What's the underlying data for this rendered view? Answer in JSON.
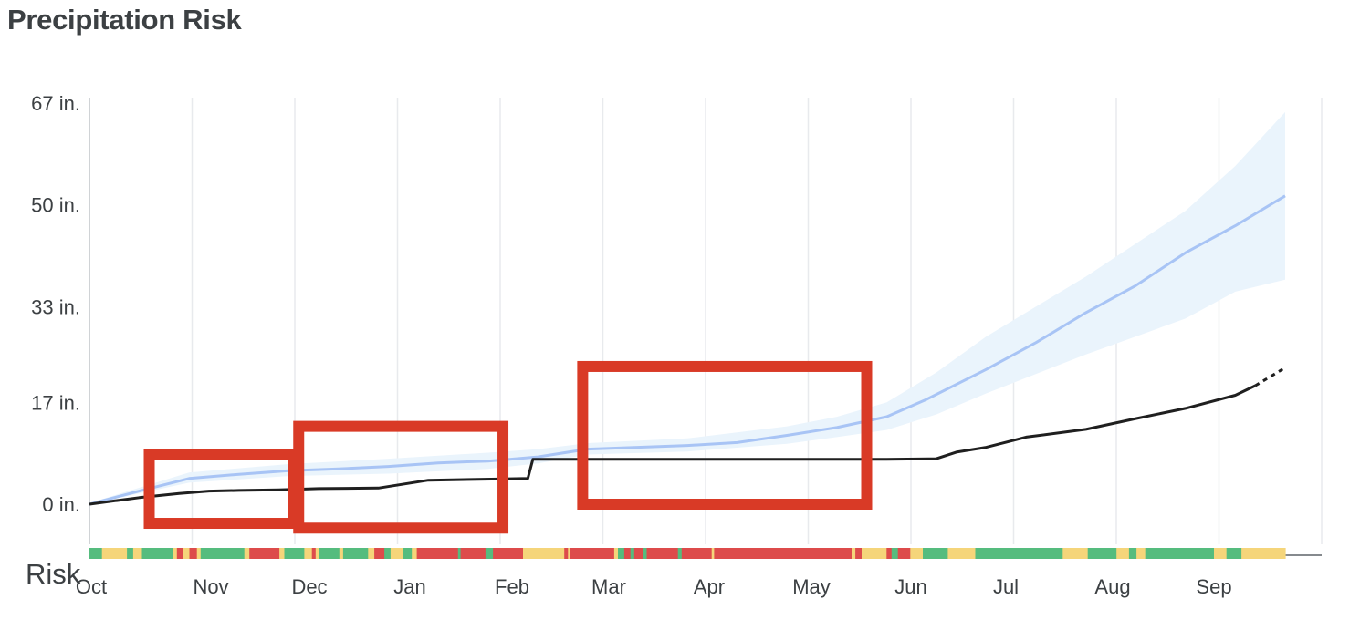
{
  "title": "Precipitation Risk",
  "risk_label": "Risk",
  "colors": {
    "actual_line": "#1f1f1f",
    "forecast_line": "#a8c4f5",
    "forecast_band": "#eaf4fc",
    "highlight_box": "#d93a26",
    "risk_green": "#55bc7e",
    "risk_yellow": "#f5d57a",
    "risk_red": "#dd4b4b",
    "grid": "#e8eaed"
  },
  "chart_data": {
    "type": "line",
    "title": "Precipitation Risk",
    "xlabel": "",
    "ylabel": "",
    "x_unit": "months from Oct 1",
    "xlim": [
      0,
      12
    ],
    "ylim": [
      0,
      67
    ],
    "grid": true,
    "categories": [
      "Oct",
      "Nov",
      "Dec",
      "Jan",
      "Feb",
      "Mar",
      "Apr",
      "May",
      "Jun",
      "Jul",
      "Aug",
      "Sep"
    ],
    "y_ticks": [
      {
        "value": 0,
        "label": "0 in."
      },
      {
        "value": 17,
        "label": "17 in."
      },
      {
        "value": 33,
        "label": "33 in."
      },
      {
        "value": 50,
        "label": "50 in."
      },
      {
        "value": 67,
        "label": "67 in."
      }
    ],
    "series": [
      {
        "role": "actual",
        "style": "solid",
        "points": [
          [
            0,
            0
          ],
          [
            0.5,
            1.1
          ],
          [
            0.9,
            1.8
          ],
          [
            1.2,
            2.2
          ],
          [
            1.5,
            2.3
          ],
          [
            1.9,
            2.4
          ],
          [
            2.3,
            2.6
          ],
          [
            2.9,
            2.7
          ],
          [
            3.4,
            4.0
          ],
          [
            4.1,
            4.2
          ],
          [
            4.4,
            4.3
          ],
          [
            4.45,
            7.5
          ],
          [
            5.0,
            7.5
          ],
          [
            6.0,
            7.5
          ],
          [
            7.0,
            7.5
          ],
          [
            8.0,
            7.5
          ],
          [
            8.5,
            7.6
          ],
          [
            8.7,
            8.7
          ],
          [
            9.0,
            9.5
          ],
          [
            9.4,
            11.2
          ],
          [
            10.0,
            12.5
          ],
          [
            10.5,
            14.3
          ],
          [
            11.0,
            16.0
          ],
          [
            11.5,
            18.2
          ],
          [
            11.7,
            19.8
          ]
        ]
      },
      {
        "role": "actual-projection",
        "style": "dotted",
        "points": [
          [
            11.7,
            19.8
          ],
          [
            12.0,
            22.8
          ]
        ]
      },
      {
        "role": "forecast-median",
        "points": [
          [
            0,
            0
          ],
          [
            0.5,
            2.2
          ],
          [
            1.0,
            4.3
          ],
          [
            1.5,
            5.0
          ],
          [
            2.0,
            5.6
          ],
          [
            2.5,
            5.9
          ],
          [
            3.0,
            6.3
          ],
          [
            3.5,
            6.9
          ],
          [
            4.0,
            7.2
          ],
          [
            4.5,
            7.9
          ],
          [
            5.0,
            9.2
          ],
          [
            5.5,
            9.5
          ],
          [
            6.0,
            9.8
          ],
          [
            6.5,
            10.3
          ],
          [
            7.0,
            11.5
          ],
          [
            7.5,
            12.8
          ],
          [
            8.0,
            14.6
          ],
          [
            8.4,
            17.5
          ],
          [
            9.0,
            22.5
          ],
          [
            9.5,
            27.0
          ],
          [
            10.0,
            32.0
          ],
          [
            10.5,
            36.5
          ],
          [
            11.0,
            42.0
          ],
          [
            11.5,
            46.5
          ],
          [
            12.0,
            51.5
          ]
        ]
      },
      {
        "role": "forecast-range",
        "upper": [
          [
            0,
            0.2
          ],
          [
            1.0,
            5.3
          ],
          [
            2.0,
            6.7
          ],
          [
            3.0,
            7.6
          ],
          [
            4.0,
            8.6
          ],
          [
            4.5,
            9.2
          ],
          [
            5.0,
            10.2
          ],
          [
            6.0,
            11.0
          ],
          [
            7.0,
            13.0
          ],
          [
            7.5,
            14.6
          ],
          [
            8.0,
            17.0
          ],
          [
            8.5,
            22.0
          ],
          [
            9.0,
            28.0
          ],
          [
            10.0,
            38.0
          ],
          [
            11.0,
            49.0
          ],
          [
            11.5,
            56.5
          ],
          [
            12.0,
            65.5
          ]
        ]
      },
      {
        "role": "forecast-range-lower",
        "lower": [
          [
            0,
            0
          ],
          [
            1.0,
            3.6
          ],
          [
            2.0,
            4.7
          ],
          [
            3.0,
            5.1
          ],
          [
            4.0,
            5.9
          ],
          [
            4.5,
            6.8
          ],
          [
            5.0,
            8.3
          ],
          [
            6.0,
            8.8
          ],
          [
            7.0,
            10.1
          ],
          [
            7.5,
            11.2
          ],
          [
            8.0,
            12.4
          ],
          [
            8.5,
            15.0
          ],
          [
            9.0,
            18.5
          ],
          [
            10.0,
            25.0
          ],
          [
            11.0,
            31.0
          ],
          [
            11.5,
            35.5
          ],
          [
            12.0,
            37.5
          ]
        ]
      }
    ],
    "highlight_boxes": [
      {
        "x_from": 0.6,
        "x_to": 2.05,
        "y_from": -3.2,
        "y_to": 8.3
      },
      {
        "x_from": 2.1,
        "x_to": 4.15,
        "y_from": -4.0,
        "y_to": 13.0
      },
      {
        "x_from": 4.95,
        "x_to": 7.8,
        "y_from": 0,
        "y_to": 23.0
      }
    ],
    "risk_strip": [
      [
        "g",
        0.1
      ],
      [
        "y",
        0.2
      ],
      [
        "g",
        0.05
      ],
      [
        "y",
        0.07
      ],
      [
        "g",
        0.25
      ],
      [
        "y",
        0.03
      ],
      [
        "r",
        0.05
      ],
      [
        "y",
        0.05
      ],
      [
        "r",
        0.06
      ],
      [
        "y",
        0.03
      ],
      [
        "g",
        0.35
      ],
      [
        "y",
        0.04
      ],
      [
        "r",
        0.24
      ],
      [
        "y",
        0.04
      ],
      [
        "g",
        0.16
      ],
      [
        "y",
        0.06
      ],
      [
        "r",
        0.03
      ],
      [
        "y",
        0.03
      ],
      [
        "g",
        0.16
      ],
      [
        "y",
        0.03
      ],
      [
        "g",
        0.2
      ],
      [
        "y",
        0.05
      ],
      [
        "r",
        0.08
      ],
      [
        "g",
        0.05
      ],
      [
        "y",
        0.1
      ],
      [
        "g",
        0.07
      ],
      [
        "y",
        0.04
      ],
      [
        "r",
        0.33
      ],
      [
        "g",
        0.02
      ],
      [
        "r",
        0.2
      ],
      [
        "g",
        0.06
      ],
      [
        "r",
        0.24
      ],
      [
        "y",
        0.33
      ],
      [
        "r",
        0.03
      ],
      [
        "y",
        0.02
      ],
      [
        "r",
        0.35
      ],
      [
        "y",
        0.03
      ],
      [
        "g",
        0.05
      ],
      [
        "r",
        0.05
      ],
      [
        "g",
        0.03
      ],
      [
        "r",
        0.07
      ],
      [
        "g",
        0.03
      ],
      [
        "r",
        0.25
      ],
      [
        "g",
        0.03
      ],
      [
        "r",
        0.24
      ],
      [
        "y",
        0.02
      ],
      [
        "r",
        1.1
      ],
      [
        "y",
        0.03
      ],
      [
        "r",
        0.05
      ],
      [
        "y",
        0.2
      ],
      [
        "r",
        0.04
      ],
      [
        "g",
        0.05
      ],
      [
        "r",
        0.1
      ],
      [
        "y",
        0.1
      ],
      [
        "g",
        0.2
      ],
      [
        "y",
        0.22
      ],
      [
        "g",
        0.7
      ],
      [
        "y",
        0.2
      ],
      [
        "g",
        0.23
      ],
      [
        "y",
        0.1
      ],
      [
        "g",
        0.06
      ],
      [
        "y",
        0.07
      ],
      [
        "g",
        0.55
      ],
      [
        "y",
        0.1
      ],
      [
        "g",
        0.12
      ],
      [
        "y",
        0.35
      ]
    ]
  }
}
